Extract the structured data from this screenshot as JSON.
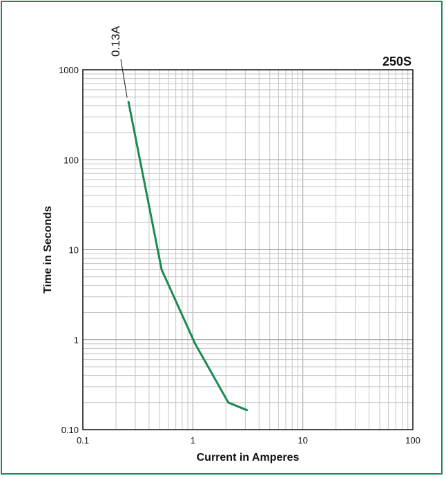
{
  "chart_data": {
    "type": "line",
    "title": "250S",
    "xlabel": "Current in Amperes",
    "ylabel": "Time in Seconds",
    "x_scale": "log",
    "y_scale": "log",
    "xlim": [
      0.1,
      100
    ],
    "ylim": [
      0.1,
      1000
    ],
    "x_ticks": [
      "0.1",
      "1",
      "10",
      "100"
    ],
    "y_ticks": [
      "0.10",
      "1",
      "10",
      "100",
      "1000"
    ],
    "grid": true,
    "line_color": "#1a8a52",
    "series": [
      {
        "name": "0.13A",
        "x": [
          0.26,
          0.52,
          1.05,
          2.1,
          3.1
        ],
        "y": [
          440,
          6,
          0.9,
          0.2,
          0.165
        ]
      }
    ],
    "annotations": [
      {
        "text": "0.13A",
        "series_index": 0
      }
    ]
  }
}
